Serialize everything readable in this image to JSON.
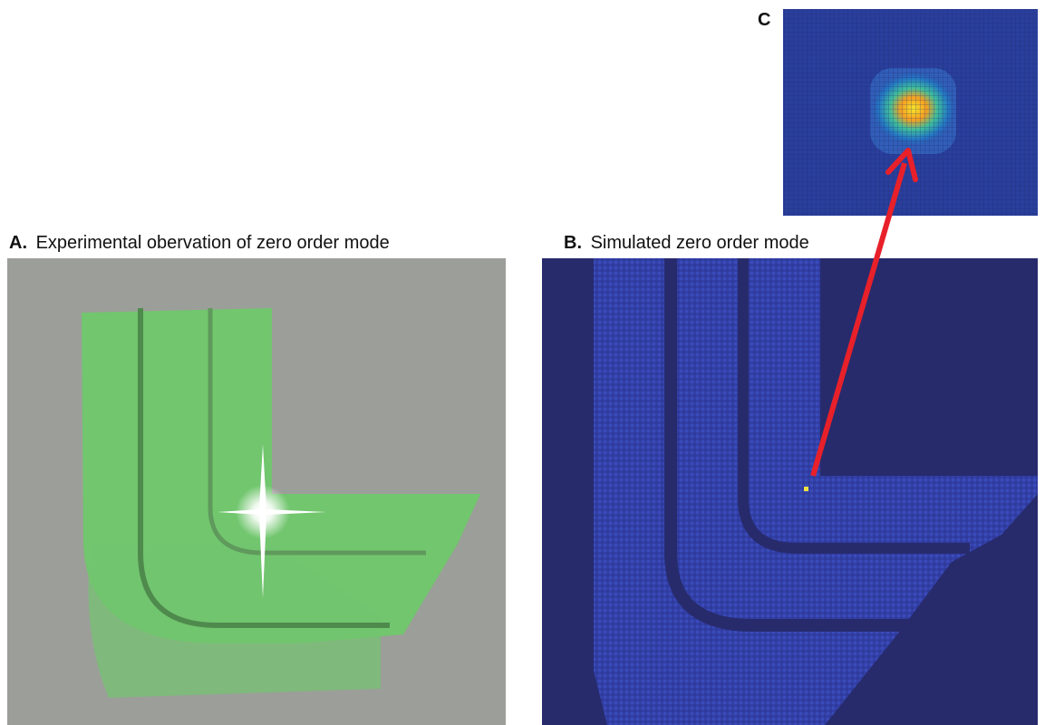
{
  "panels": [
    {
      "letter": "A.",
      "caption": "Experimental obervation of zero order mode"
    },
    {
      "letter": "B.",
      "caption": "Simulated zero order mode"
    },
    {
      "letter": "C"
    }
  ]
}
